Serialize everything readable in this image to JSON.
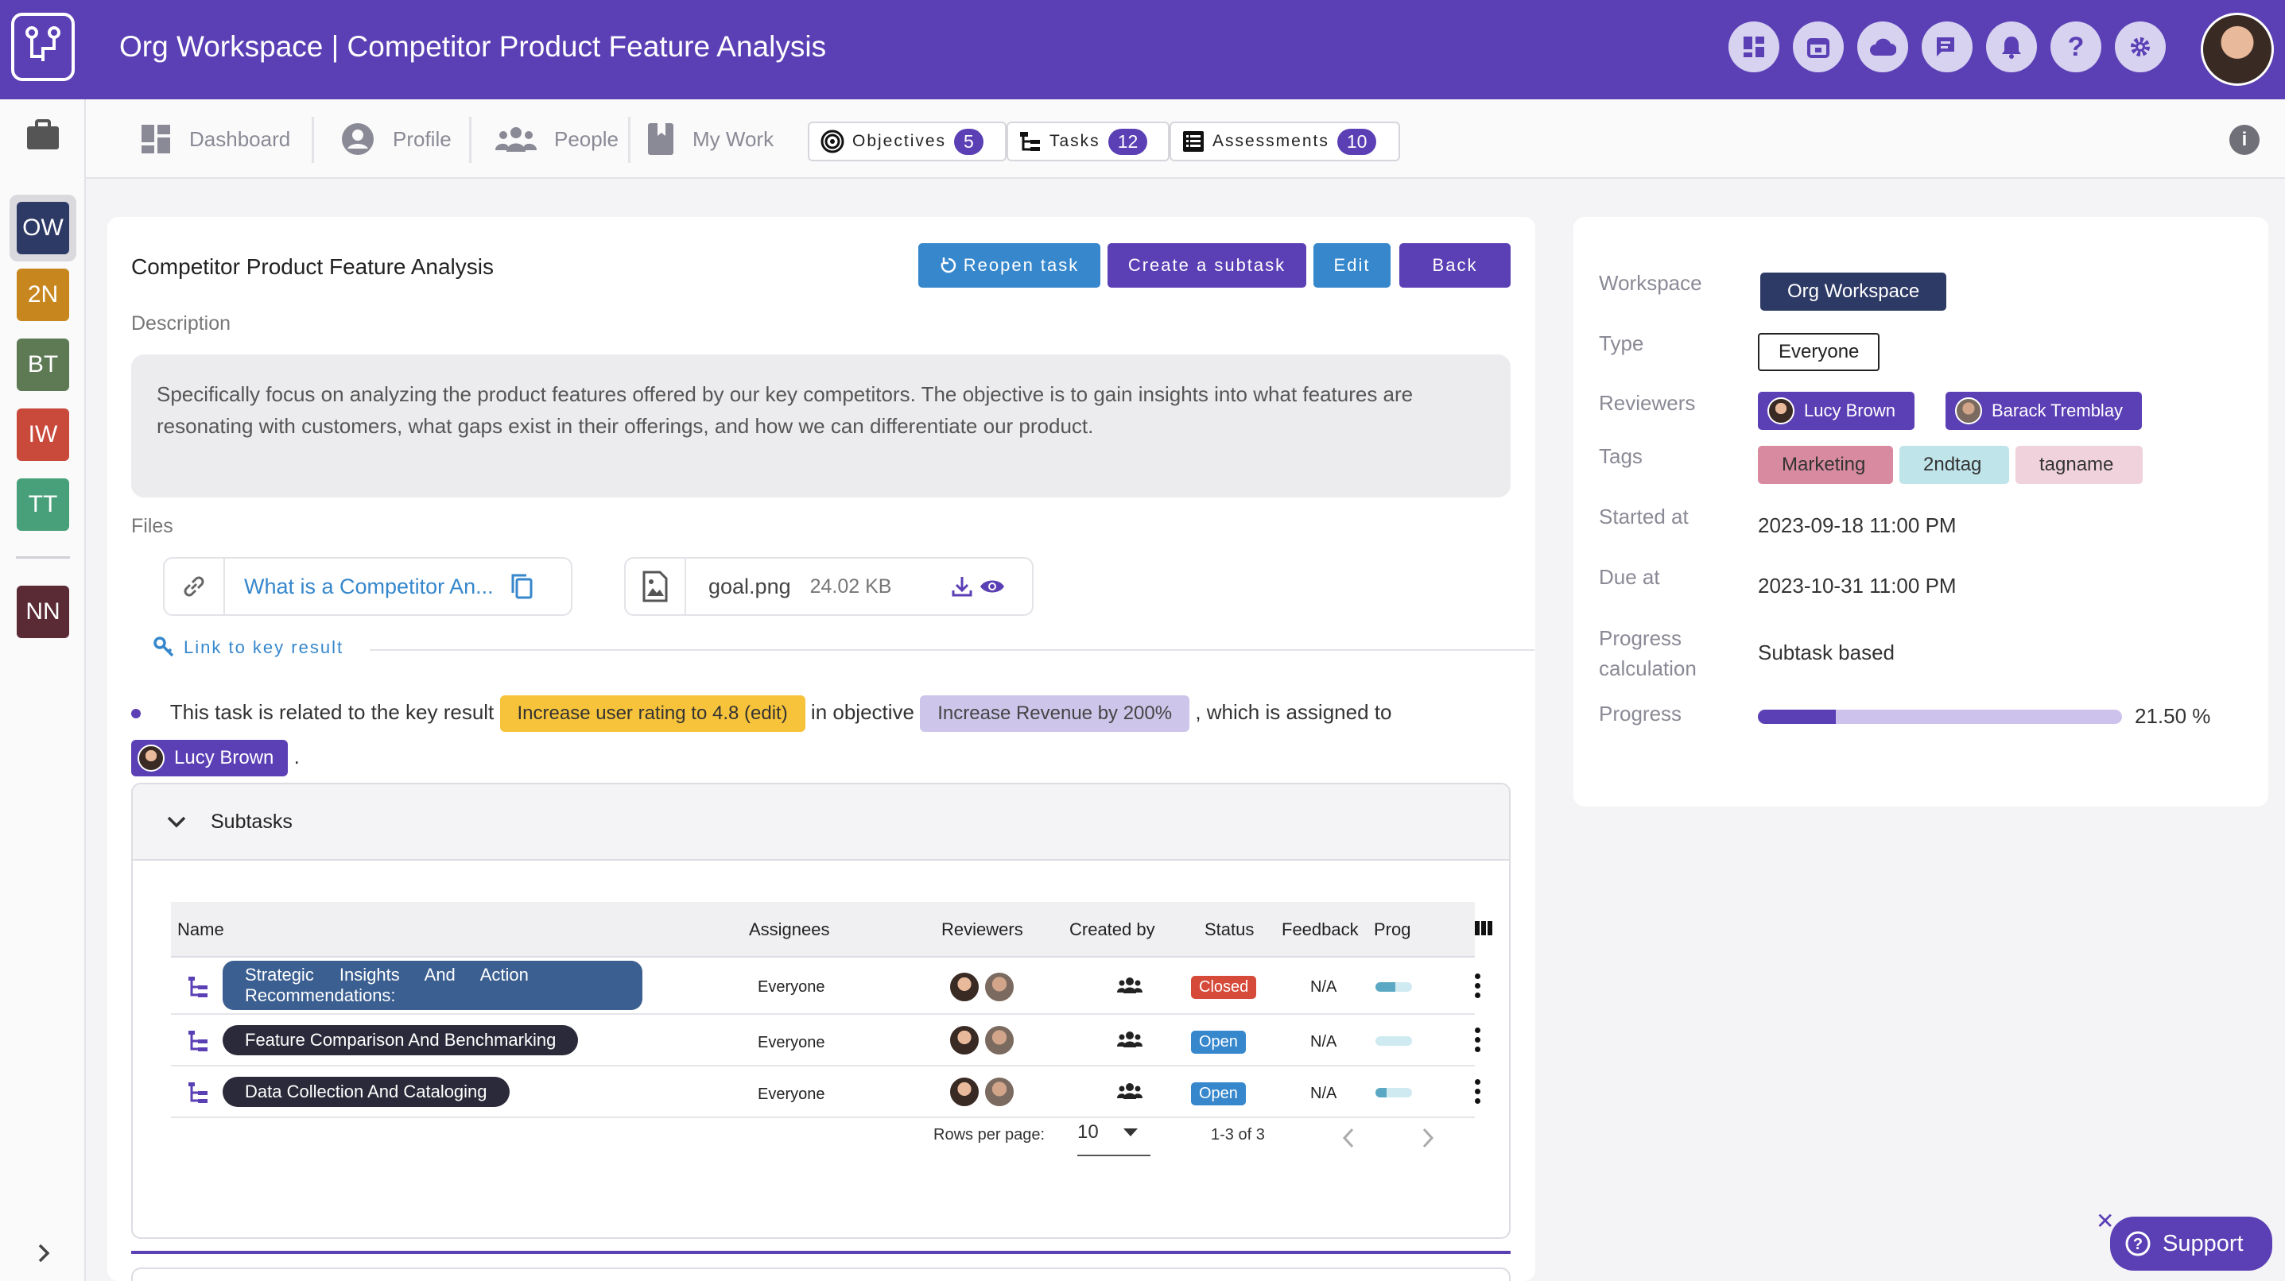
{
  "app": {
    "title": "Org Workspace | Competitor Product Feature Analysis"
  },
  "rail": {
    "items": [
      {
        "abbr": "OW",
        "color": "#2e3a66"
      },
      {
        "abbr": "2N",
        "color": "#c8861f"
      },
      {
        "abbr": "BT",
        "color": "#5d7a55"
      },
      {
        "abbr": "IW",
        "color": "#c9493b"
      },
      {
        "abbr": "TT",
        "color": "#48a07a"
      },
      {
        "abbr": "NN",
        "color": "#5a2a35"
      }
    ]
  },
  "nav": {
    "dashboard": "Dashboard",
    "profile": "Profile",
    "people": "People",
    "my_work": "My Work",
    "objectives": {
      "label": "Objectives",
      "count": "5"
    },
    "tasks": {
      "label": "Tasks",
      "count": "12"
    },
    "assessments": {
      "label": "Assessments",
      "count": "10"
    }
  },
  "task": {
    "title": "Competitor Product Feature Analysis",
    "buttons": {
      "reopen": "Reopen task",
      "create_subtask": "Create a subtask",
      "edit": "Edit",
      "back": "Back"
    },
    "description_label": "Description",
    "description": "Specifically focus on analyzing the product features offered by our key competitors. The objective is to gain insights into what features are resonating with customers, what gaps exist in their offerings, and how we can differentiate our product.",
    "files_label": "Files",
    "files": {
      "link_name": "What is a Competitor An...",
      "file_name": "goal.png",
      "file_size": "24.02 KB"
    },
    "link_key_result": "Link to key result",
    "kr": {
      "prefix": "This task is related to the key result",
      "key_result": "Increase user rating to 4.8 (edit)",
      "middle": "in objective",
      "objective": "Increase Revenue by 200%",
      "suffix": ", which is assigned to",
      "assignee": "Lucy Brown",
      "end": "."
    }
  },
  "subtasks": {
    "title": "Subtasks",
    "columns": [
      "Name",
      "Assignees",
      "Reviewers",
      "Created by",
      "Status",
      "Feedback",
      "Prog"
    ],
    "rows": [
      {
        "name": "Strategic Insights And Action Recommendations:",
        "assignees": "Everyone",
        "status": "Closed",
        "feedback": "N/A",
        "progress": 0.55
      },
      {
        "name": "Feature Comparison And Benchmarking",
        "assignees": "Everyone",
        "status": "Open",
        "feedback": "N/A",
        "progress": 0.0
      },
      {
        "name": "Data Collection And Cataloging",
        "assignees": "Everyone",
        "status": "Open",
        "feedback": "N/A",
        "progress": 0.3
      }
    ],
    "pager": {
      "rows_per_page_label": "Rows per page:",
      "rows_per_page": "10",
      "range": "1-3 of 3"
    }
  },
  "details": {
    "workspace_label": "Workspace",
    "workspace": "Org Workspace",
    "type_label": "Type",
    "type": "Everyone",
    "reviewers_label": "Reviewers",
    "reviewers": [
      "Lucy Brown",
      "Barack Tremblay"
    ],
    "tags_label": "Tags",
    "tags": [
      {
        "name": "Marketing",
        "color": "#d88aa0"
      },
      {
        "name": "2ndtag",
        "color": "#bfe4ea"
      },
      {
        "name": "tagname",
        "color": "#f0d2dc"
      }
    ],
    "started_label": "Started at",
    "started": "2023-09-18 11:00 PM",
    "due_label": "Due at",
    "due": "2023-10-31 11:00 PM",
    "progress_calc_label": "Progress calculation",
    "progress_calc": "Subtask based",
    "progress_label": "Progress",
    "progress_text": "21.50 %",
    "progress_value": 21.5
  },
  "support": {
    "label": "Support"
  },
  "colors": {
    "brand": "#5b3fb5",
    "accent_blue": "#3687cc"
  }
}
